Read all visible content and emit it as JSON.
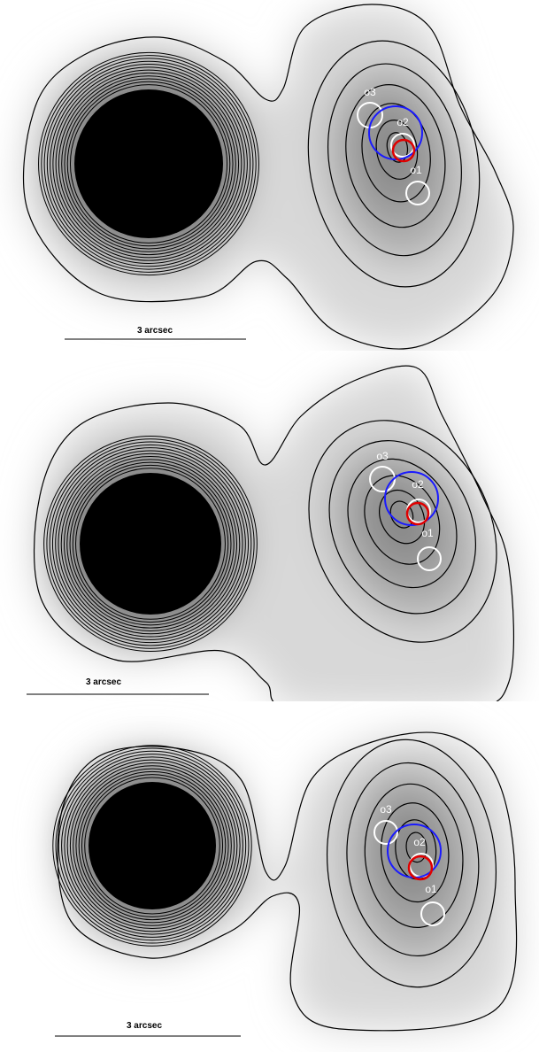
{
  "panels": [
    {
      "scale_bar": "3 arcsec",
      "labels": [
        "o3",
        "o2",
        "o1"
      ]
    },
    {
      "scale_bar": "3 arcsec",
      "labels": [
        "o3",
        "o2",
        "o1"
      ]
    },
    {
      "scale_bar": "3 arcsec",
      "labels": [
        "o3",
        "o2",
        "o1"
      ]
    }
  ]
}
